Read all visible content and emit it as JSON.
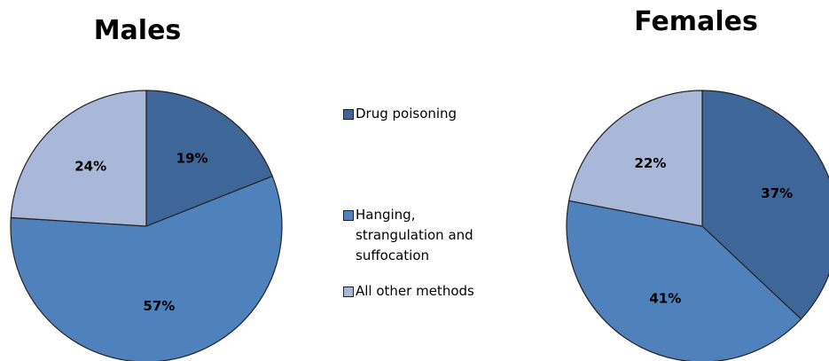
{
  "chart_data": [
    {
      "type": "pie",
      "title": "Males",
      "categories": [
        "Drug poisoning",
        "Hanging, strangulation and suffocation",
        "All other methods"
      ],
      "values": [
        19,
        57,
        24
      ],
      "value_labels": [
        "19%",
        "57%",
        "24%"
      ],
      "colors": [
        "#3f6698",
        "#4f81bd",
        "#a9b8d8"
      ]
    },
    {
      "type": "pie",
      "title": "Females",
      "categories": [
        "Drug poisoning",
        "Hanging, strangulation and suffocation",
        "All other methods"
      ],
      "values": [
        37,
        41,
        22
      ],
      "value_labels": [
        "37%",
        "41%",
        "22%"
      ],
      "colors": [
        "#3f6698",
        "#4f81bd",
        "#a9b8d8"
      ]
    }
  ]
}
